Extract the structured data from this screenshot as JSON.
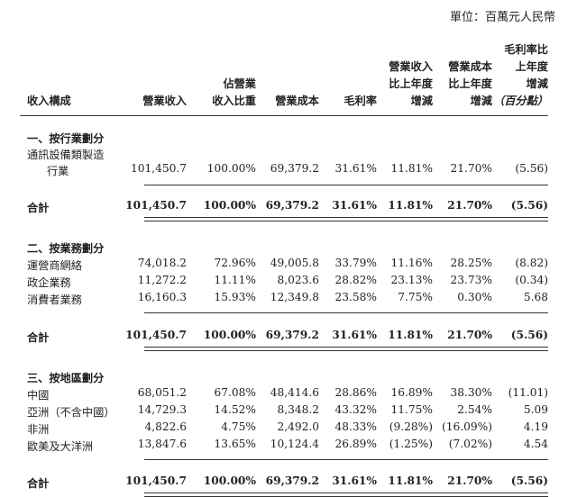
{
  "unit": "單位：百萬元人民幣",
  "headers": {
    "composition": "收入構成",
    "revenue": "營業收入",
    "share": [
      "佔營業",
      "收入比重"
    ],
    "cost": "營業成本",
    "margin": "毛利率",
    "rev_change": [
      "營業收入",
      "比上年度",
      "增減"
    ],
    "cost_change": [
      "營業成本",
      "比上年度",
      "增減"
    ],
    "margin_change": [
      "毛利率比",
      "上年度",
      "增減",
      "（百分點）"
    ]
  },
  "sections": [
    {
      "title": "一、按行業劃分",
      "rows": [
        {
          "label": [
            "通訊設備類製造",
            "行業"
          ],
          "values": [
            "101,450.7",
            "100.00%",
            "69,379.2",
            "31.61%",
            "11.81%",
            "21.70%",
            "(5.56)"
          ]
        }
      ],
      "total": {
        "label": "合計",
        "values": [
          "101,450.7",
          "100.00%",
          "69,379.2",
          "31.61%",
          "11.81%",
          "21.70%",
          "(5.56)"
        ]
      }
    },
    {
      "title": "二、按業務劃分",
      "rows": [
        {
          "label": [
            "運營商網絡"
          ],
          "values": [
            "74,018.2",
            "72.96%",
            "49,005.8",
            "33.79%",
            "11.16%",
            "28.25%",
            "(8.82)"
          ]
        },
        {
          "label": [
            "政企業務"
          ],
          "values": [
            "11,272.2",
            "11.11%",
            "8,023.6",
            "28.82%",
            "23.13%",
            "23.73%",
            "(0.34)"
          ]
        },
        {
          "label": [
            "消費者業務"
          ],
          "values": [
            "16,160.3",
            "15.93%",
            "12,349.8",
            "23.58%",
            "7.75%",
            "0.30%",
            "5.68"
          ]
        }
      ],
      "total": {
        "label": "合計",
        "values": [
          "101,450.7",
          "100.00%",
          "69,379.2",
          "31.61%",
          "11.81%",
          "21.70%",
          "(5.56)"
        ]
      }
    },
    {
      "title": "三、按地區劃分",
      "rows": [
        {
          "label": [
            "中國"
          ],
          "values": [
            "68,051.2",
            "67.08%",
            "48,414.6",
            "28.86%",
            "16.89%",
            "38.30%",
            "(11.01)"
          ]
        },
        {
          "label": [
            "亞洲（不含中國）"
          ],
          "values": [
            "14,729.3",
            "14.52%",
            "8,348.2",
            "43.32%",
            "11.75%",
            "2.54%",
            "5.09"
          ]
        },
        {
          "label": [
            "非洲"
          ],
          "values": [
            "4,822.6",
            "4.75%",
            "2,492.0",
            "48.33%",
            "(9.28%)",
            "(16.09%)",
            "4.19"
          ]
        },
        {
          "label": [
            "歐美及大洋洲"
          ],
          "values": [
            "13,847.6",
            "13.65%",
            "10,124.4",
            "26.89%",
            "(1.25%)",
            "(7.02%)",
            "4.54"
          ]
        }
      ],
      "total": {
        "label": "合計",
        "values": [
          "101,450.7",
          "100.00%",
          "69,379.2",
          "31.61%",
          "11.81%",
          "21.70%",
          "(5.56)"
        ]
      }
    }
  ]
}
